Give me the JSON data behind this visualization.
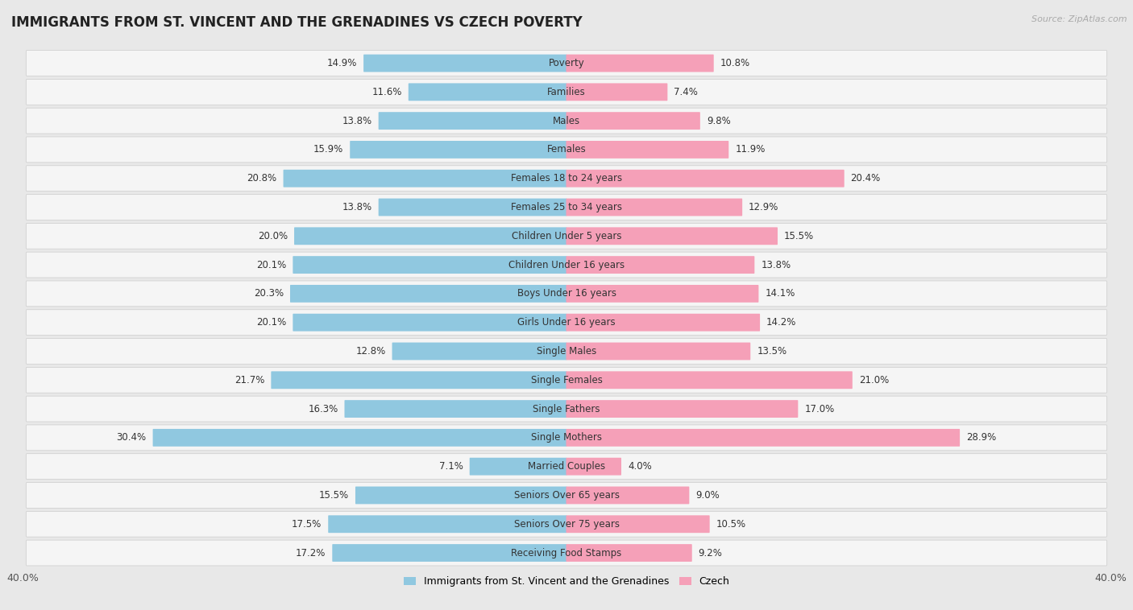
{
  "title": "IMMIGRANTS FROM ST. VINCENT AND THE GRENADINES VS CZECH POVERTY",
  "source": "Source: ZipAtlas.com",
  "categories": [
    "Poverty",
    "Families",
    "Males",
    "Females",
    "Females 18 to 24 years",
    "Females 25 to 34 years",
    "Children Under 5 years",
    "Children Under 16 years",
    "Boys Under 16 years",
    "Girls Under 16 years",
    "Single Males",
    "Single Females",
    "Single Fathers",
    "Single Mothers",
    "Married Couples",
    "Seniors Over 65 years",
    "Seniors Over 75 years",
    "Receiving Food Stamps"
  ],
  "left_values": [
    14.9,
    11.6,
    13.8,
    15.9,
    20.8,
    13.8,
    20.0,
    20.1,
    20.3,
    20.1,
    12.8,
    21.7,
    16.3,
    30.4,
    7.1,
    15.5,
    17.5,
    17.2
  ],
  "right_values": [
    10.8,
    7.4,
    9.8,
    11.9,
    20.4,
    12.9,
    15.5,
    13.8,
    14.1,
    14.2,
    13.5,
    21.0,
    17.0,
    28.9,
    4.0,
    9.0,
    10.5,
    9.2
  ],
  "left_color": "#90c8e0",
  "right_color": "#f5a0b8",
  "background_color": "#e8e8e8",
  "row_color": "#f5f5f5",
  "xlim": 40.0,
  "legend_left": "Immigrants from St. Vincent and the Grenadines",
  "legend_right": "Czech",
  "title_fontsize": 12,
  "label_fontsize": 8.5,
  "value_fontsize": 8.5
}
